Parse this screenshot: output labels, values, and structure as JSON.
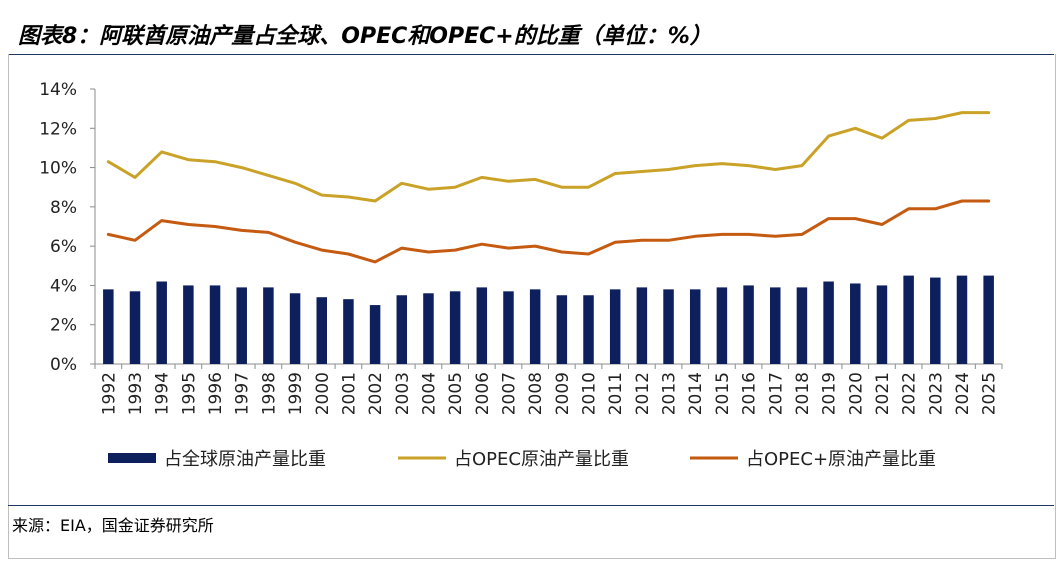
{
  "header": {
    "title": "图表8：阿联酋原油产量占全球、OPEC和OPEC+的比重（单位：%）"
  },
  "footer": {
    "source": "来源：EIA，国金证券研究所"
  },
  "chart_data": {
    "type": "bar",
    "categories": [
      "1992",
      "1993",
      "1994",
      "1995",
      "1996",
      "1997",
      "1998",
      "1999",
      "2000",
      "2001",
      "2002",
      "2003",
      "2004",
      "2005",
      "2006",
      "2007",
      "2008",
      "2009",
      "2010",
      "2011",
      "2012",
      "2013",
      "2014",
      "2015",
      "2016",
      "2017",
      "2018",
      "2019",
      "2020",
      "2021",
      "2022",
      "2023",
      "2024",
      "2025"
    ],
    "y_ticks": [
      "0%",
      "2%",
      "4%",
      "6%",
      "8%",
      "10%",
      "12%",
      "14%"
    ],
    "ylim": [
      0,
      14
    ],
    "legend_position": "bottom",
    "grid": false,
    "series": [
      {
        "name": "占全球原油产量比重",
        "type": "bar",
        "color": "#0d1f5c",
        "values": [
          3.8,
          3.7,
          4.2,
          4.0,
          4.0,
          3.9,
          3.9,
          3.6,
          3.4,
          3.3,
          3.0,
          3.5,
          3.6,
          3.7,
          3.9,
          3.7,
          3.8,
          3.5,
          3.5,
          3.8,
          3.9,
          3.8,
          3.8,
          3.9,
          4.0,
          3.9,
          3.9,
          4.2,
          4.1,
          4.0,
          4.5,
          4.4,
          4.5,
          4.5
        ]
      },
      {
        "name": "占OPEC原油产量比重",
        "type": "line",
        "color": "#c9a227",
        "values": [
          10.3,
          9.5,
          10.8,
          10.4,
          10.3,
          10.0,
          9.6,
          9.2,
          8.6,
          8.5,
          8.3,
          9.2,
          8.9,
          9.0,
          9.5,
          9.3,
          9.4,
          9.0,
          9.0,
          9.7,
          9.8,
          9.9,
          10.1,
          10.2,
          10.1,
          9.9,
          10.1,
          11.6,
          12.0,
          11.5,
          12.4,
          12.5,
          12.8,
          12.8
        ]
      },
      {
        "name": "占OPEC+原油产量比重",
        "type": "line",
        "color": "#c55a11",
        "values": [
          6.6,
          6.3,
          7.3,
          7.1,
          7.0,
          6.8,
          6.7,
          6.2,
          5.8,
          5.6,
          5.2,
          5.9,
          5.7,
          5.8,
          6.1,
          5.9,
          6.0,
          5.7,
          5.6,
          6.2,
          6.3,
          6.3,
          6.5,
          6.6,
          6.6,
          6.5,
          6.6,
          7.4,
          7.4,
          7.1,
          7.9,
          7.9,
          8.3,
          8.3
        ]
      }
    ]
  }
}
